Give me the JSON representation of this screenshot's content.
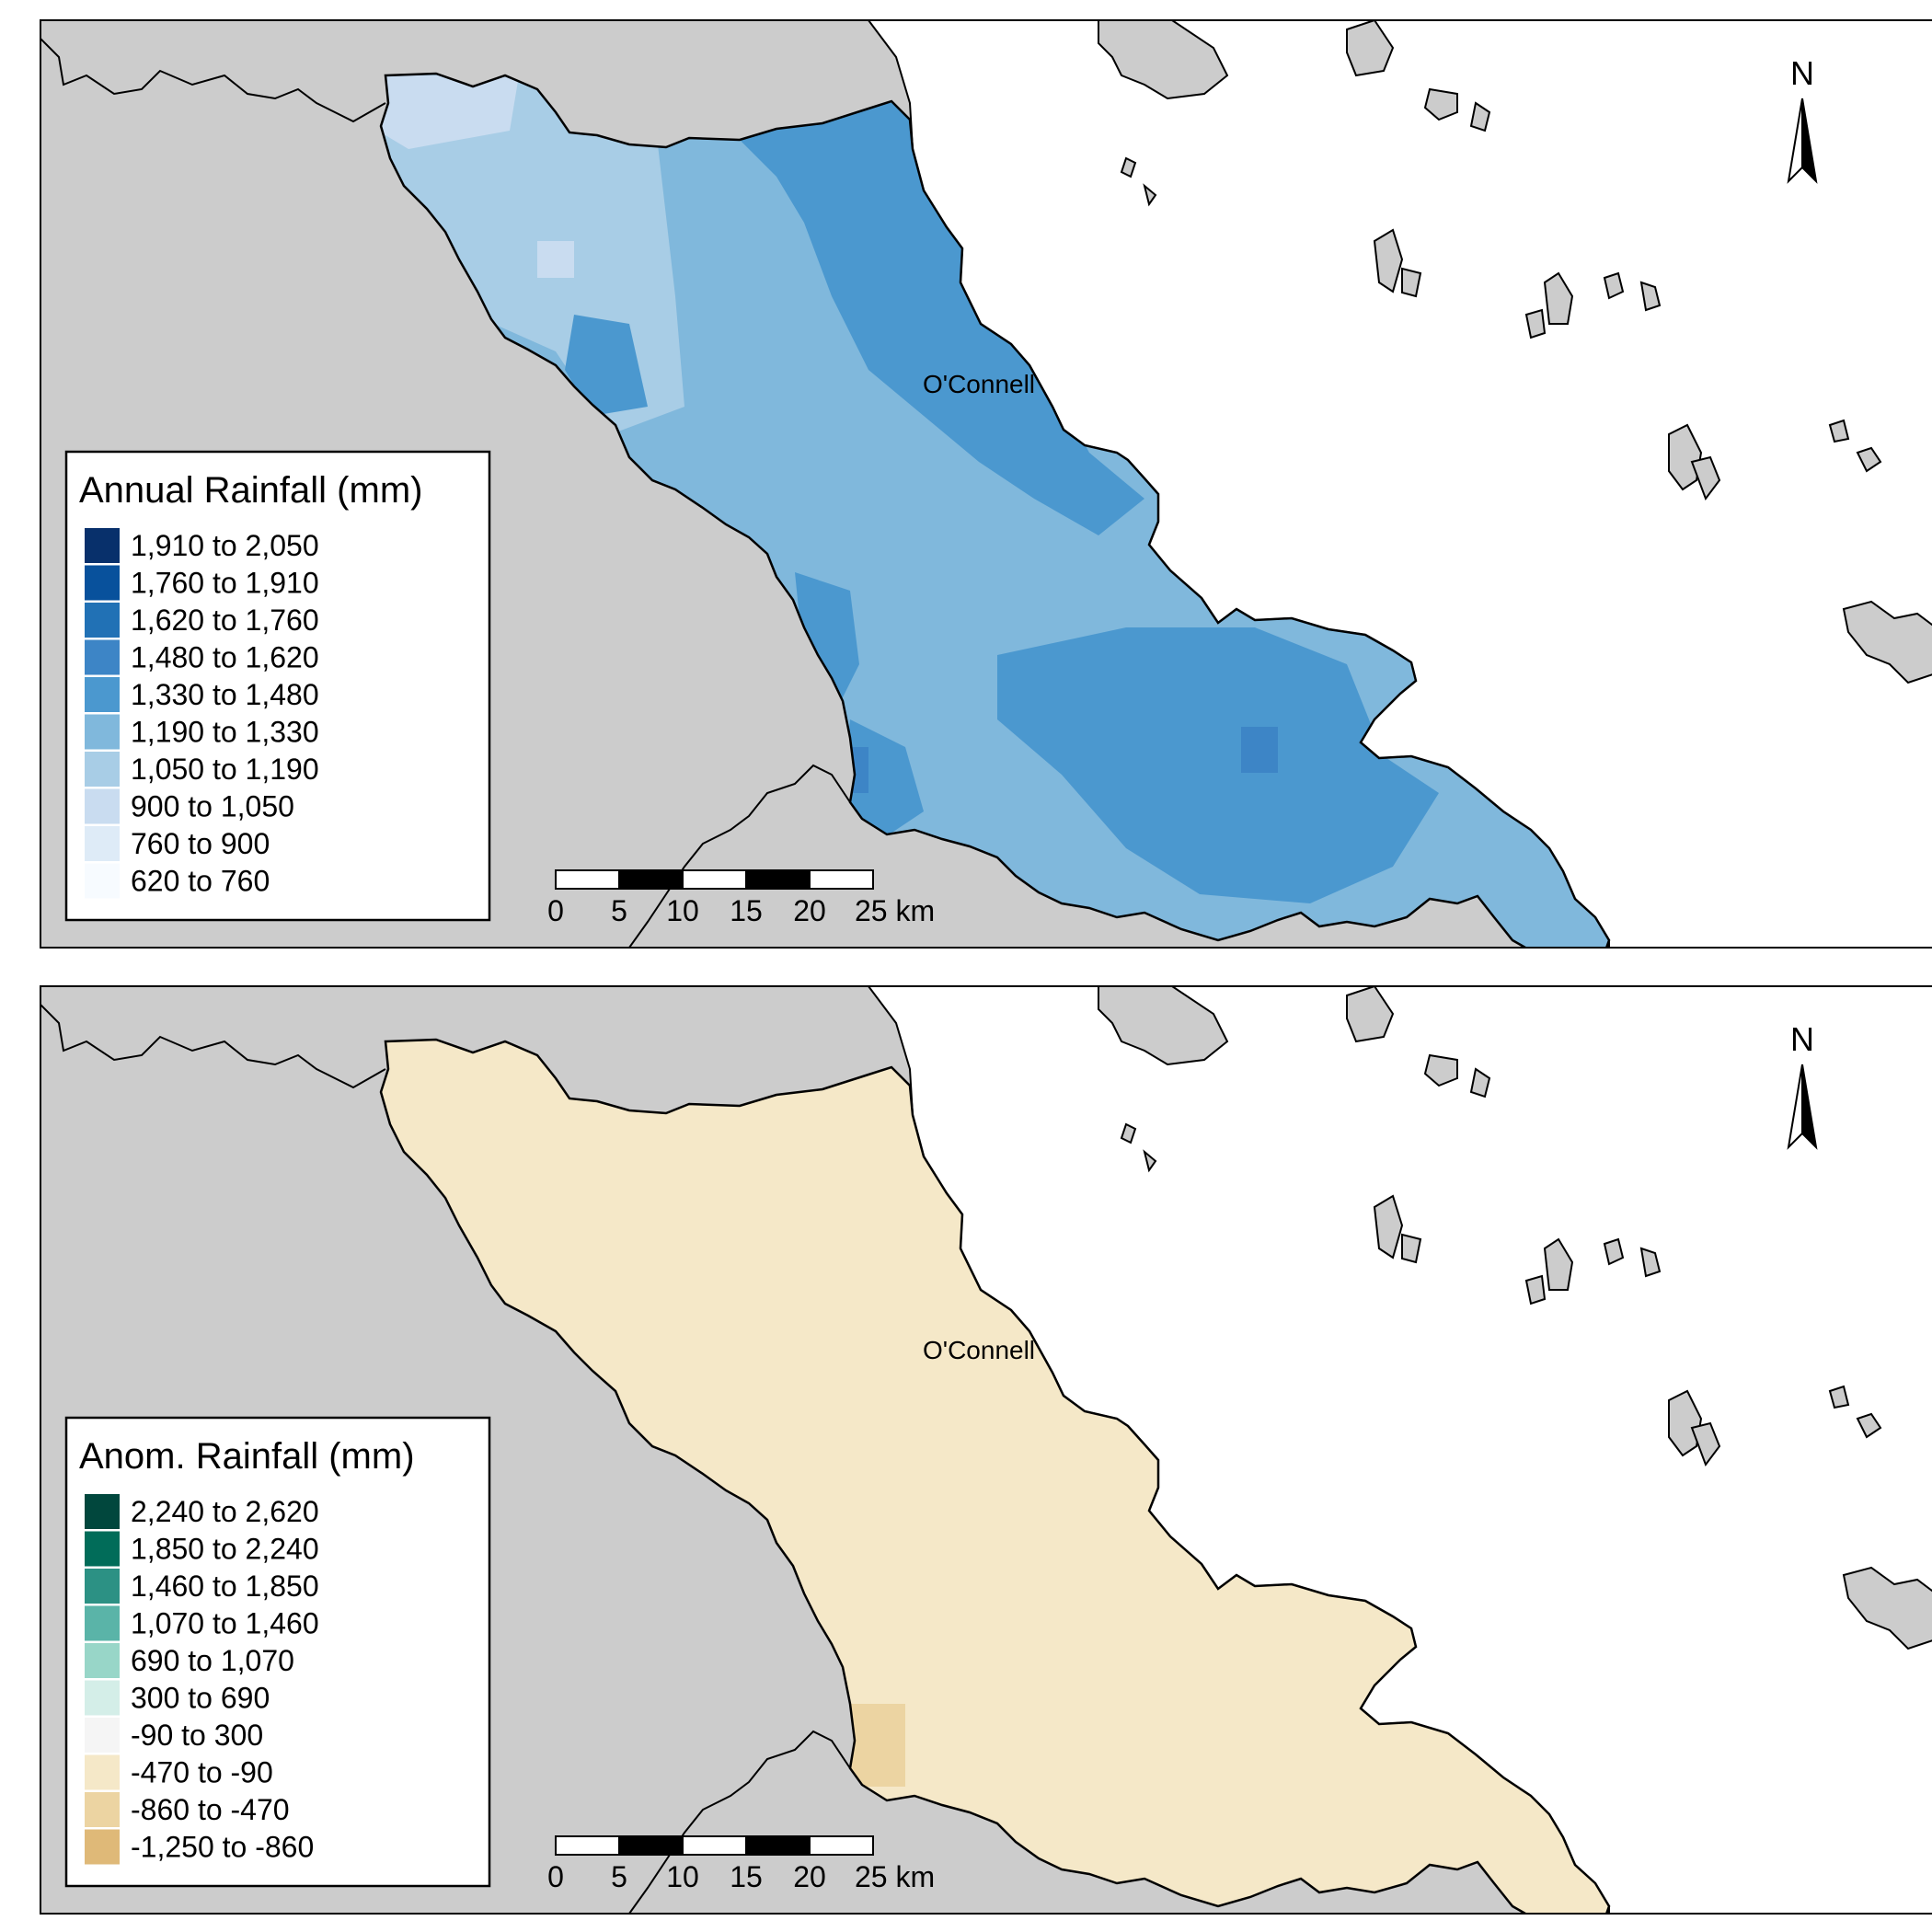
{
  "panels": [
    {
      "id": "annual",
      "legend": {
        "title": "Annual Rainfall (mm)",
        "items": [
          {
            "label": "1,910 to 2,050",
            "color": "#08306b"
          },
          {
            "label": "1,760 to 1,910",
            "color": "#08519c"
          },
          {
            "label": "1,620 to 1,760",
            "color": "#2171b5"
          },
          {
            "label": "1,480 to 1,620",
            "color": "#3d85c6"
          },
          {
            "label": "1,330 to 1,480",
            "color": "#4b98cf"
          },
          {
            "label": "1,190 to 1,330",
            "color": "#80b8dc"
          },
          {
            "label": "1,050 to 1,190",
            "color": "#a8cde6"
          },
          {
            "label": "900 to 1,050",
            "color": "#c9dcf0"
          },
          {
            "label": "760 to 900",
            "color": "#deebf7"
          },
          {
            "label": "620 to 760",
            "color": "#f7fbff"
          }
        ]
      },
      "place_label": "O'Connell",
      "north_label": "N",
      "scale": {
        "labels": [
          "0",
          "5",
          "10",
          "15",
          "20",
          "25 km"
        ]
      }
    },
    {
      "id": "anomaly",
      "legend": {
        "title": "Anom. Rainfall (mm)",
        "items": [
          {
            "label": "2,240 to 2,620",
            "color": "#01473d"
          },
          {
            "label": "1,850 to 2,240",
            "color": "#016c59"
          },
          {
            "label": "1,460 to 1,850",
            "color": "#2c9184"
          },
          {
            "label": "1,070 to 1,460",
            "color": "#5ab4a8"
          },
          {
            "label": "690 to 1,070",
            "color": "#98d6c8"
          },
          {
            "label": "300 to 690",
            "color": "#d4eee8"
          },
          {
            "label": "-90 to 300",
            "color": "#f5f5f5"
          },
          {
            "label": "-470 to -90",
            "color": "#f5e8c8"
          },
          {
            "label": "-860 to -470",
            "color": "#ecd4a2"
          },
          {
            "label": "-1,250 to -860",
            "color": "#dfb978"
          }
        ]
      },
      "place_label": "O'Connell",
      "north_label": "N",
      "scale": {
        "labels": [
          "0",
          "5",
          "10",
          "15",
          "20",
          "25 km"
        ]
      }
    }
  ],
  "colors": {
    "land": "#cccccc",
    "sea": "#ffffff",
    "outline": "#000000"
  }
}
